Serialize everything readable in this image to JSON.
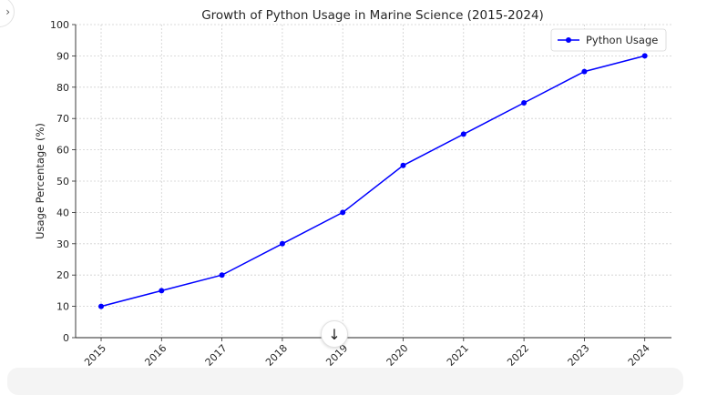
{
  "chart_data": {
    "type": "line",
    "title": "Growth of Python Usage in Marine Science (2015-2024)",
    "xlabel": "",
    "ylabel": "Usage Percentage (%)",
    "categories": [
      "2015",
      "2016",
      "2017",
      "2018",
      "2019",
      "2020",
      "2021",
      "2022",
      "2023",
      "2024"
    ],
    "series": [
      {
        "name": "Python Usage",
        "values": [
          10,
          15,
          20,
          30,
          40,
          55,
          65,
          75,
          85,
          90
        ],
        "color": "#0000ff"
      }
    ],
    "ylim": [
      0,
      100
    ],
    "yticks": [
      0,
      10,
      20,
      30,
      40,
      50,
      60,
      70,
      80,
      90,
      100
    ],
    "grid": true,
    "legend_position": "top-right",
    "marker": "circle"
  },
  "ui": {
    "scroll_icon": "arrow-down-icon",
    "scroll_glyph": "↓",
    "corner_icon": "chevron-icon",
    "corner_glyph": "›"
  }
}
